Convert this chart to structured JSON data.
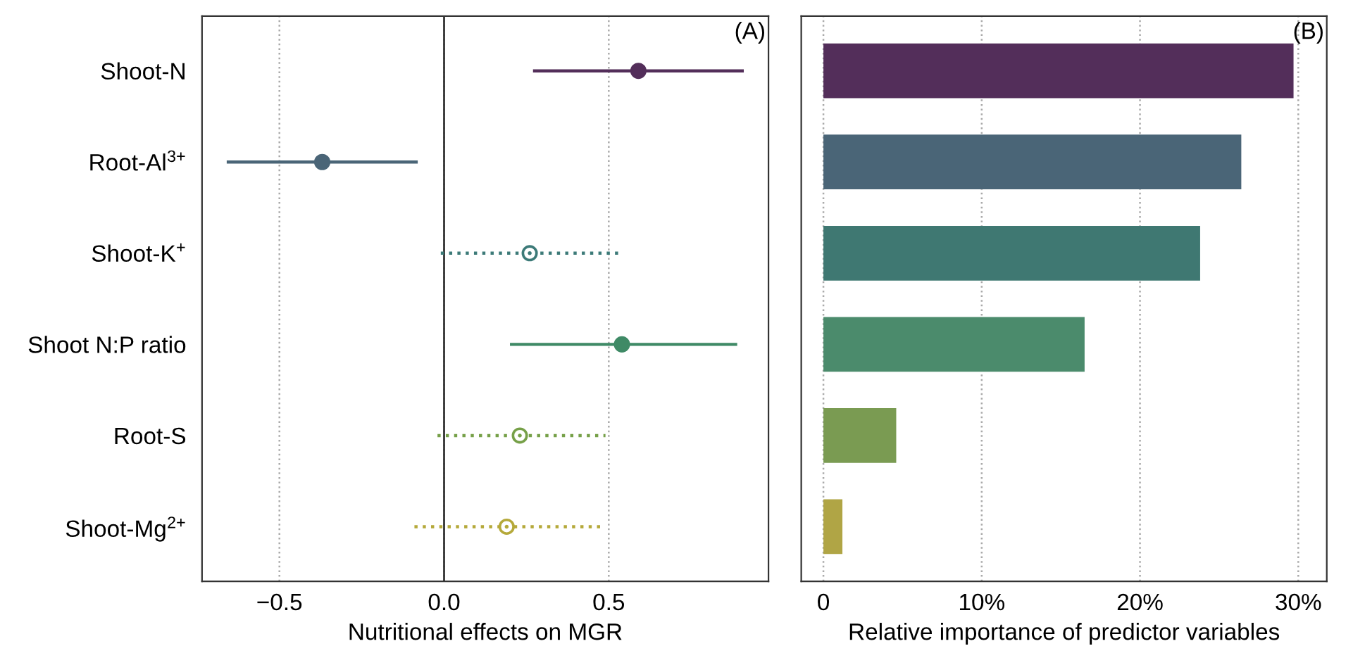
{
  "chart_data": [
    {
      "type": "scatter",
      "orientation": "horizontal",
      "xlabel": "Nutritional effects on MGR",
      "annotations": [
        "(A)"
      ],
      "categories": [
        "Shoot-N",
        "Root-Al$^{3+}$",
        "Shoot-K$^{+}$",
        "Shoot N:P ratio",
        "Root-S",
        "Shoot-Mg$^{2+}$"
      ],
      "series": [
        {
          "values": [
            0.59,
            -0.37,
            null,
            0.54,
            null,
            null
          ],
          "colors": [
            "#532e5a",
            "#4a6577",
            null,
            "#3f8a66",
            null,
            null
          ],
          "errors": [
            [
              0.27,
              0.91
            ],
            [
              -0.66,
              -0.08
            ],
            null,
            [
              0.2,
              0.89
            ],
            null,
            null
          ],
          "marker": "circle",
          "line_style": "solid"
        },
        {
          "values": [
            null,
            null,
            0.26,
            null,
            0.23,
            0.19
          ],
          "colors": [
            null,
            null,
            "#3c7a78",
            null,
            "#76a048",
            "#b5a93a"
          ],
          "errors": [
            null,
            null,
            [
              -0.01,
              0.54
            ],
            null,
            [
              -0.02,
              0.49
            ],
            [
              -0.09,
              0.48
            ]
          ],
          "marker": "circle",
          "line_style": "dotted"
        }
      ],
      "xlim": [
        -0.735,
        0.985
      ],
      "xticks": [
        {
          "value": -0.5,
          "label": "−0.5"
        },
        {
          "value": 0,
          "label": "0.0"
        },
        0.5
      ],
      "ref_lines": [
        {
          "axis": "x",
          "value": 0,
          "color": "#333333"
        }
      ],
      "grid": "x",
      "legend": false
    },
    {
      "type": "bar",
      "orientation": "horizontal",
      "xlabel": "Relative importance of predictor variables",
      "annotations": [
        "(B)"
      ],
      "categories": [
        null,
        null,
        null,
        null,
        null,
        null
      ],
      "values": [
        29.7,
        26.4,
        23.8,
        16.5,
        4.6,
        1.2
      ],
      "colors": [
        "#532e5a",
        "#4a6577",
        "#3f7872",
        "#4b8b6c",
        "#7a9b52",
        "#b0a545"
      ],
      "xlim": [
        -1.4,
        31.8
      ],
      "xticks": [
        0,
        {
          "value": 10,
          "label": "10%"
        },
        {
          "value": 20,
          "label": "20%"
        },
        {
          "value": 30,
          "label": "30%"
        }
      ],
      "grid": "x",
      "legend": false,
      "tick_labels": "x"
    }
  ]
}
